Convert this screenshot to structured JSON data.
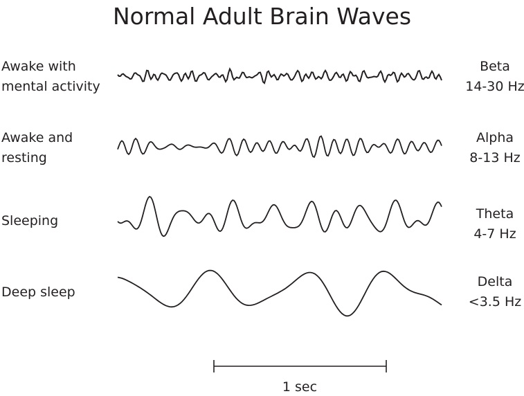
{
  "title": "Normal Adult Brain Waves",
  "rows": [
    {
      "state_line1": "Awake with",
      "state_line2": "mental activity",
      "wave": "Beta",
      "range": "14-30 Hz"
    },
    {
      "state_line1": "Awake and",
      "state_line2": "resting",
      "wave": "Alpha",
      "range": "8-13 Hz"
    },
    {
      "state_line1": "Sleeping",
      "state_line2": "",
      "wave": "Theta",
      "range": "4-7 Hz"
    },
    {
      "state_line1": "Deep sleep",
      "state_line2": "",
      "wave": "Delta",
      "range": "<3.5 Hz"
    }
  ],
  "scale_bar": {
    "label": "1 sec"
  },
  "line_color": "#231f20"
}
